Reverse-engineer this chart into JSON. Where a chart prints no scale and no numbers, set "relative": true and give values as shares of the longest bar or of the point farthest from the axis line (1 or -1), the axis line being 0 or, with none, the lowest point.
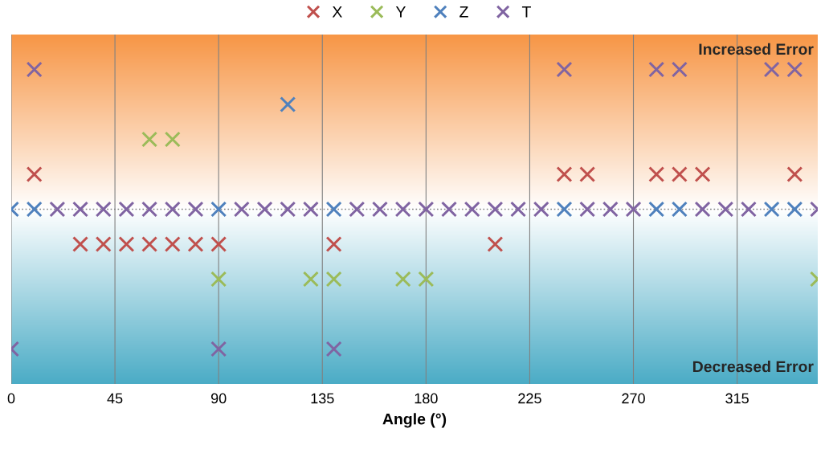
{
  "chart_data": {
    "type": "scatter",
    "relative": true,
    "xlabel": "Angle (°)",
    "x": [
      0,
      10,
      20,
      30,
      40,
      50,
      60,
      70,
      80,
      90,
      100,
      110,
      120,
      130,
      140,
      150,
      160,
      170,
      180,
      190,
      200,
      210,
      220,
      230,
      240,
      250,
      260,
      270,
      280,
      290,
      300,
      310,
      320,
      330,
      340,
      350
    ],
    "xlim": [
      0,
      350
    ],
    "xticks": [
      0,
      45,
      90,
      135,
      180,
      225,
      270,
      315
    ],
    "tick_labels": "x",
    "grid": "x",
    "legend": "top",
    "marker": "cross",
    "ref_lines": [
      {
        "axis": "y",
        "value": 0,
        "line_style": "dotted",
        "color": "#808080"
      }
    ],
    "annotations": [
      "Increased Error",
      "Decreased Error"
    ],
    "series": [
      {
        "name": "X",
        "color": "#c0504d",
        "values": [
          null,
          0.25,
          null,
          -0.25,
          -0.25,
          -0.25,
          -0.25,
          -0.25,
          -0.25,
          -0.25,
          null,
          null,
          null,
          null,
          -0.25,
          null,
          null,
          null,
          null,
          null,
          null,
          -0.25,
          null,
          null,
          0.25,
          0.25,
          null,
          null,
          0.25,
          0.25,
          0.25,
          null,
          null,
          null,
          0.25,
          null
        ]
      },
      {
        "name": "Y",
        "color": "#9bbb59",
        "values": [
          null,
          null,
          null,
          null,
          null,
          null,
          0.5,
          0.5,
          null,
          -0.5,
          null,
          null,
          null,
          -0.5,
          -0.5,
          null,
          null,
          -0.5,
          -0.5,
          null,
          null,
          null,
          null,
          null,
          null,
          null,
          null,
          null,
          null,
          null,
          null,
          null,
          null,
          null,
          null,
          -0.5
        ]
      },
      {
        "name": "Z",
        "color": "#4f81bd",
        "values": [
          0,
          0,
          null,
          null,
          null,
          null,
          null,
          null,
          null,
          0,
          null,
          null,
          0.75,
          null,
          0,
          null,
          null,
          null,
          null,
          null,
          null,
          null,
          null,
          null,
          0,
          null,
          null,
          null,
          0,
          0,
          null,
          null,
          null,
          0,
          0,
          null
        ]
      },
      {
        "name": "T",
        "color": "#8064a2",
        "values": [
          -1,
          1,
          0,
          0,
          0,
          0,
          0,
          0,
          0,
          -1,
          0,
          0,
          0,
          0,
          -1,
          0,
          0,
          0,
          0,
          0,
          0,
          0,
          0,
          0,
          1,
          0,
          0,
          0,
          1,
          1,
          0,
          0,
          0,
          1,
          1,
          0
        ]
      }
    ]
  }
}
